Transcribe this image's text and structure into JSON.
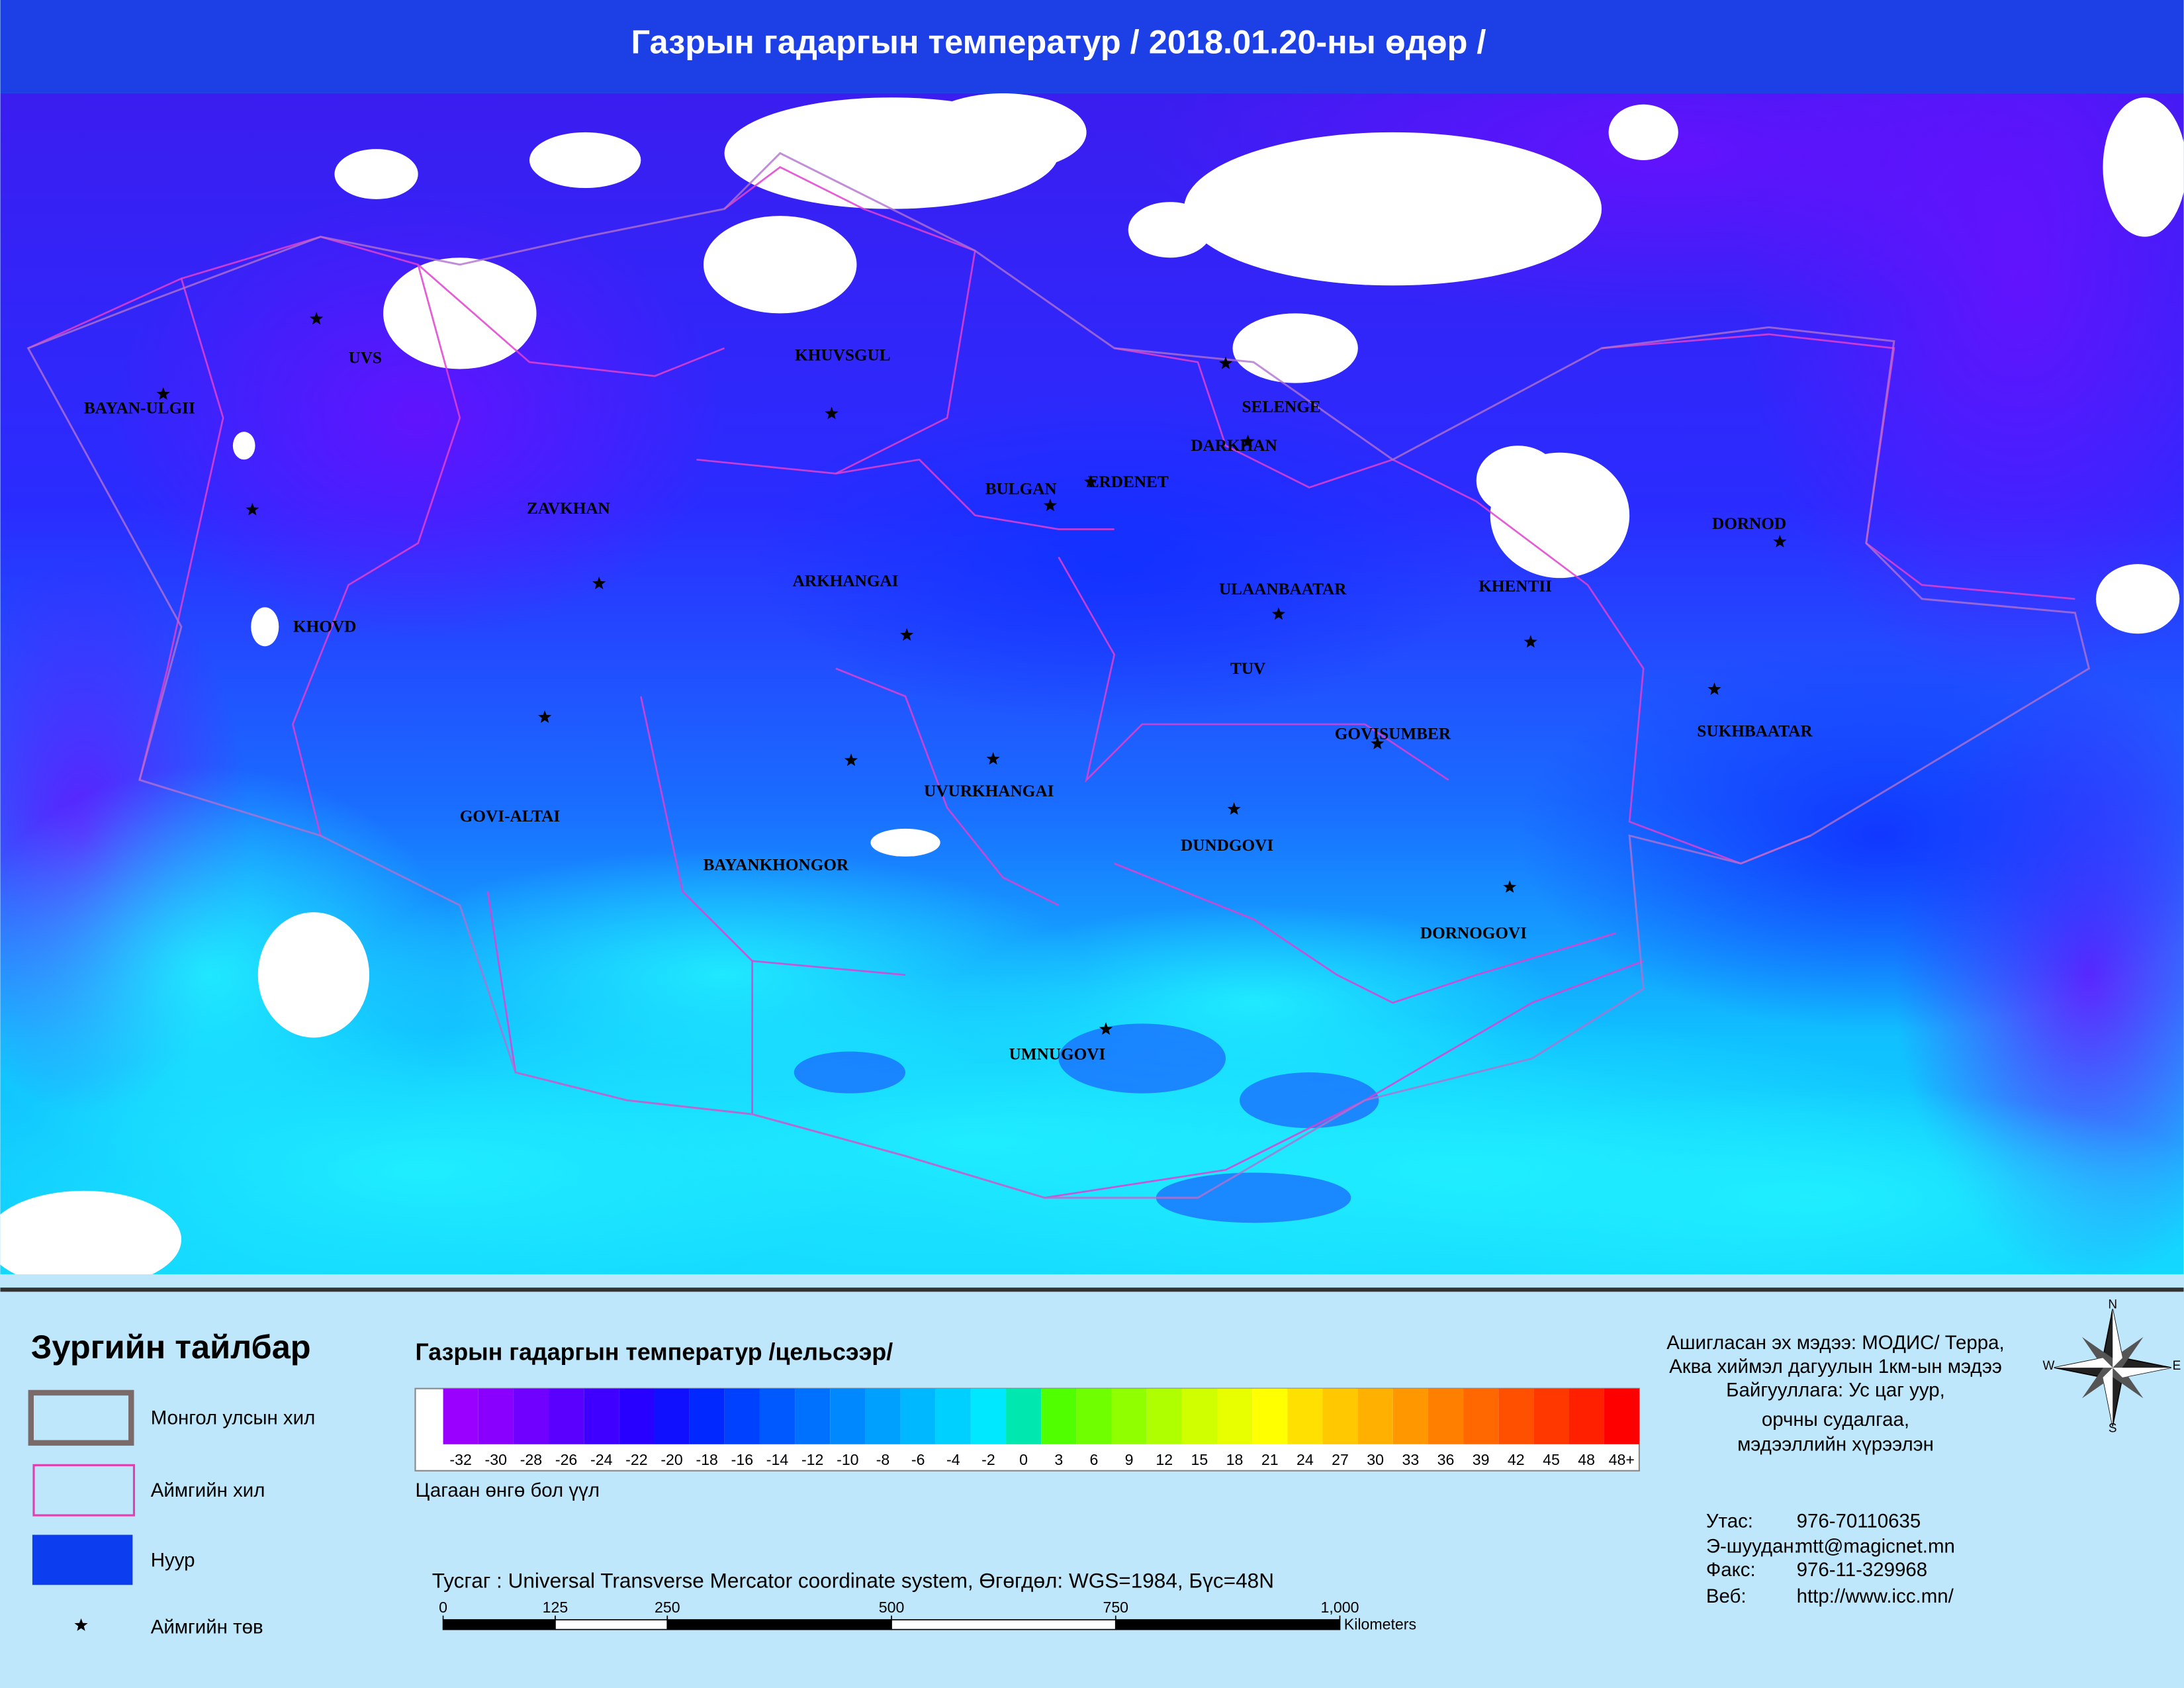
{
  "title": "Газрын гадаргын температур / 2018.01.20-ны өдөр /",
  "places": [
    "UVS",
    "BAYAN-ULGII",
    "KHUVSGUL",
    "SELENGE",
    "DARKHAN",
    "BULGAN",
    "ERDENET",
    "ZAVKHAN",
    "DORNOD",
    "ARKHANGAI",
    "ULAANBAATAR",
    "KHENTII",
    "KHOVD",
    "TUV",
    "GOVISUMBER",
    "SUKHBAATAR",
    "UVURKHANGAI",
    "GOVI-ALTAI",
    "DUNDGOVI",
    "BAYANKHONGOR",
    "DORNOGOVI",
    "UMNUGOVI"
  ],
  "legend": {
    "title": "Зургийн тайлбар",
    "items": [
      "Монгол улсын хил",
      "Аймгийн хил",
      "Нуур",
      "Аймгийн төв"
    ]
  },
  "color_scale": {
    "title": "Газрын гадаргын температур /цельсээр/",
    "labels": [
      "-32",
      "-30",
      "-28",
      "-26",
      "-24",
      "-22",
      "-20",
      "-18",
      "-16",
      "-14",
      "-12",
      "-10",
      "-8",
      "-6",
      "-4",
      "-2",
      "0",
      "3",
      "6",
      "9",
      "12",
      "15",
      "18",
      "21",
      "24",
      "27",
      "30",
      "33",
      "36",
      "39",
      "42",
      "45",
      "48",
      "48+"
    ],
    "colors": [
      "#9a00ff",
      "#8a00ff",
      "#7000ff",
      "#5a00ff",
      "#4000ff",
      "#2800ff",
      "#1010ff",
      "#0028ff",
      "#0040ff",
      "#0058ff",
      "#0070ff",
      "#0088ff",
      "#00a0ff",
      "#00b8ff",
      "#00d0ff",
      "#00e8ff",
      "#00e8b0",
      "#50ff00",
      "#70ff00",
      "#90ff00",
      "#b0ff00",
      "#d0ff00",
      "#e8ff00",
      "#ffff00",
      "#ffe000",
      "#ffc800",
      "#ffb000",
      "#ff9800",
      "#ff8000",
      "#ff6800",
      "#ff5000",
      "#ff3800",
      "#ff2000",
      "#ff0000"
    ],
    "note": "Цагаан өнгө бол үүл"
  },
  "projection": "Тусгаг : Universal Transverse Mercator coordinate system, Өгөгдөл: WGS=1984, Бүс=48N",
  "scale_bar": {
    "ticks": [
      0,
      125,
      250,
      500,
      750,
      {
        "value": 1000,
        "label": "1,000"
      }
    ],
    "unit": "Kilometers"
  },
  "source": [
    "Ашигласан эх мэдээ: МОДИС/ Терра,",
    "Аква хиймэл дагуулын 1км-ын мэдээ",
    "Байгууллага: Ус цаг уур,",
    "орчны судалгаа,",
    "мэдээллийн хүрээлэн"
  ],
  "contacts": [
    {
      "label": "Утас:",
      "value": "976-70110635"
    },
    {
      "label": "Э-шуудан:",
      "value": "mtt@magicnet.mn"
    },
    {
      "label": "Факс:",
      "value": "976-11-329968"
    },
    {
      "label": "Веб:",
      "value": "http://www.icc.mn/"
    }
  ],
  "compass": [
    "N",
    "E",
    "W",
    "S"
  ]
}
